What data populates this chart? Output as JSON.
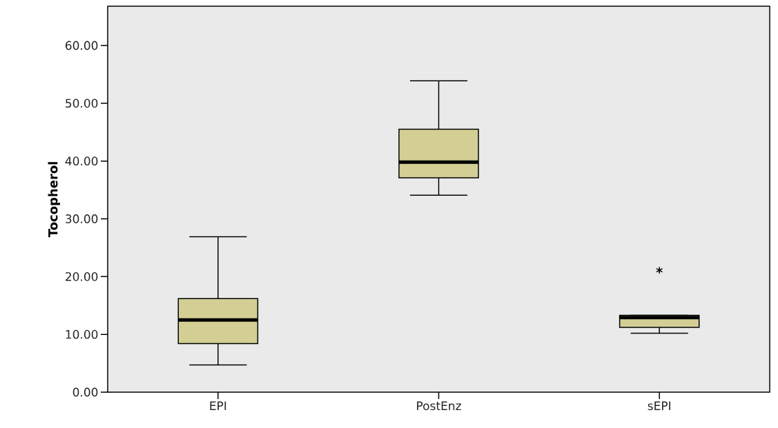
{
  "chart_data": {
    "type": "box",
    "ylabel": "Tocopherol",
    "categories": [
      "EPI",
      "PostEnz",
      "sEPI"
    ],
    "color": "#d3cf94",
    "boxes": [
      {
        "low": 4.7,
        "q1": 8.4,
        "median": 12.5,
        "q3": 16.2,
        "high": 26.9
      },
      {
        "low": 34.1,
        "q1": 37.1,
        "median": 39.8,
        "q3": 45.5,
        "high": 53.9
      },
      {
        "low": 10.2,
        "q1": 11.2,
        "median": 12.9,
        "q3": 13.3,
        "high": 13.3,
        "outliers": [
          21.1
        ]
      }
    ],
    "marker": "star",
    "ylim": [
      0,
      66.8
    ],
    "yticks": [
      {
        "value": 0,
        "label": "0.00"
      },
      {
        "value": 10,
        "label": "10.00"
      },
      {
        "value": 20,
        "label": "20.00"
      },
      {
        "value": 30,
        "label": "30.00"
      },
      {
        "value": 40,
        "label": "40.00"
      },
      {
        "value": 50,
        "label": "50.00"
      },
      {
        "value": 60,
        "label": "60.00"
      }
    ],
    "grid": false
  }
}
